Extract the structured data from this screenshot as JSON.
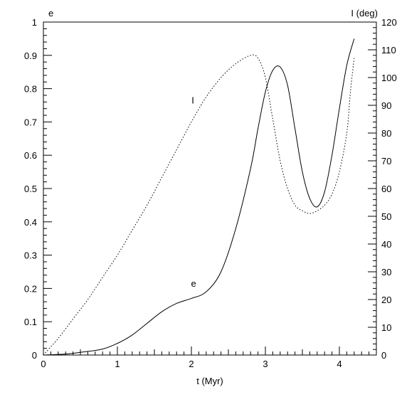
{
  "chart_data": {
    "type": "line",
    "title": "",
    "xlabel": "t (Myr)",
    "ylabel_left": "e",
    "ylabel_right": "I (deg)",
    "xlim": [
      0,
      4.5
    ],
    "ylim_left": [
      0,
      1
    ],
    "ylim_right": [
      0,
      120
    ],
    "x_ticks": [
      "0",
      "1",
      "2",
      "3",
      "4"
    ],
    "y_ticks_left": [
      "0",
      "0.1",
      "0.2",
      "0.3",
      "0.4",
      "0.5",
      "0.6",
      "0.7",
      "0.8",
      "0.9",
      "1"
    ],
    "y_ticks_right": [
      "0",
      "10",
      "20",
      "30",
      "40",
      "50",
      "60",
      "70",
      "80",
      "90",
      "100",
      "110",
      "120"
    ],
    "grid": false,
    "series": [
      {
        "name": "e",
        "axis": "left",
        "style": "solid",
        "x": [
          0,
          0.3,
          0.5,
          0.8,
          1.0,
          1.2,
          1.4,
          1.6,
          1.8,
          2.0,
          2.2,
          2.4,
          2.6,
          2.8,
          2.9,
          3.0,
          3.1,
          3.2,
          3.3,
          3.4,
          3.5,
          3.6,
          3.7,
          3.8,
          3.9,
          4.0,
          4.1,
          4.2
        ],
        "y": [
          0.0,
          0.003,
          0.008,
          0.018,
          0.035,
          0.06,
          0.095,
          0.13,
          0.155,
          0.17,
          0.19,
          0.25,
          0.38,
          0.56,
          0.68,
          0.79,
          0.855,
          0.865,
          0.81,
          0.68,
          0.55,
          0.47,
          0.445,
          0.49,
          0.6,
          0.74,
          0.87,
          0.95
        ]
      },
      {
        "name": "I",
        "axis": "right",
        "style": "dotted",
        "x": [
          0,
          0.2,
          0.4,
          0.6,
          0.8,
          1.0,
          1.2,
          1.4,
          1.6,
          1.8,
          2.0,
          2.2,
          2.4,
          2.6,
          2.8,
          2.9,
          3.0,
          3.1,
          3.2,
          3.3,
          3.4,
          3.5,
          3.6,
          3.7,
          3.8,
          3.9,
          4.0,
          4.1,
          4.15,
          4.2
        ],
        "y": [
          0,
          6,
          13,
          20,
          28,
          36,
          45,
          54,
          64,
          74,
          84,
          93,
          100,
          105,
          108,
          107,
          100,
          85,
          70,
          60,
          54,
          52,
          51,
          52,
          54,
          58,
          66,
          80,
          95,
          107
        ]
      }
    ],
    "annotations": [
      {
        "text": "I",
        "x": 2.02,
        "y": 0.755,
        "axis": "left"
      },
      {
        "text": "e",
        "x": 2.03,
        "y": 0.205,
        "axis": "left"
      }
    ]
  }
}
